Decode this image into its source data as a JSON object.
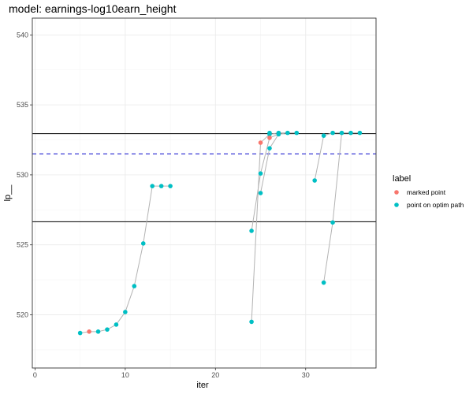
{
  "chart_data": {
    "type": "scatter",
    "title": "model: earnings-log10earn_height",
    "xlabel": "iter",
    "ylabel": "lp__",
    "xlim": [
      -0.3,
      37.8
    ],
    "ylim": [
      516.2,
      541.2
    ],
    "x_ticks": [
      0,
      10,
      20,
      30
    ],
    "y_ticks": [
      520,
      525,
      530,
      535,
      540
    ],
    "grid": true,
    "legend": {
      "title": "label",
      "position": "right",
      "entries": [
        {
          "label": "marked point",
          "color": "#f8766d"
        },
        {
          "label": "point on optim path",
          "color": "#00bfc4"
        }
      ]
    },
    "reference_lines": {
      "solid": [
        532.95,
        526.65
      ],
      "dashed": [
        531.5
      ]
    },
    "paths": [
      {
        "points": [
          [
            5,
            518.7
          ],
          [
            6,
            518.8
          ],
          [
            7,
            518.8
          ],
          [
            8,
            518.95
          ],
          [
            9,
            519.3
          ],
          [
            10,
            520.2
          ],
          [
            11,
            522.05
          ],
          [
            12,
            525.1
          ],
          [
            13,
            529.2
          ],
          [
            14,
            529.2
          ],
          [
            15,
            529.2
          ]
        ]
      },
      {
        "points": [
          [
            24,
            519.5
          ],
          [
            25,
            532.3
          ],
          [
            26,
            532.9
          ],
          [
            27,
            533.0
          ],
          [
            28,
            533.0
          ],
          [
            29,
            533.0
          ]
        ]
      },
      {
        "points": [
          [
            24,
            526.0
          ],
          [
            25,
            530.1
          ],
          [
            26,
            532.65
          ],
          [
            27,
            532.9
          ],
          [
            28,
            533.0
          ]
        ]
      },
      {
        "points": [
          [
            25,
            528.7
          ],
          [
            26,
            531.9
          ],
          [
            27,
            532.9
          ]
        ]
      },
      {
        "points": [
          [
            31,
            529.6
          ],
          [
            32,
            532.8
          ],
          [
            33,
            533.0
          ],
          [
            34,
            533.0
          ],
          [
            35,
            533.0
          ],
          [
            36,
            533.0
          ]
        ]
      },
      {
        "points": [
          [
            32,
            522.3
          ],
          [
            33,
            526.6
          ],
          [
            34,
            533.0
          ],
          [
            35,
            533.0
          ]
        ]
      }
    ],
    "series": [
      {
        "name": "marked point",
        "color": "#f8766d",
        "points": [
          [
            6,
            518.8
          ],
          [
            25,
            532.3
          ],
          [
            26,
            532.65
          ]
        ]
      },
      {
        "name": "point on optim path",
        "color": "#00bfc4",
        "points": [
          [
            5,
            518.7
          ],
          [
            7,
            518.8
          ],
          [
            8,
            518.95
          ],
          [
            9,
            519.3
          ],
          [
            10,
            520.2
          ],
          [
            11,
            522.05
          ],
          [
            12,
            525.1
          ],
          [
            13,
            529.2
          ],
          [
            14,
            529.2
          ],
          [
            15,
            529.2
          ],
          [
            24,
            519.5
          ],
          [
            24,
            526.0
          ],
          [
            25,
            530.1
          ],
          [
            25,
            528.7
          ],
          [
            26,
            532.9
          ],
          [
            26,
            531.9
          ],
          [
            26,
            533.0
          ],
          [
            27,
            533.0
          ],
          [
            27,
            532.9
          ],
          [
            28,
            533.0
          ],
          [
            29,
            533.0
          ],
          [
            31,
            529.6
          ],
          [
            32,
            532.8
          ],
          [
            32,
            522.3
          ],
          [
            33,
            533.0
          ],
          [
            33,
            526.6
          ],
          [
            34,
            533.0
          ],
          [
            35,
            533.0
          ],
          [
            36,
            533.0
          ]
        ]
      }
    ]
  }
}
